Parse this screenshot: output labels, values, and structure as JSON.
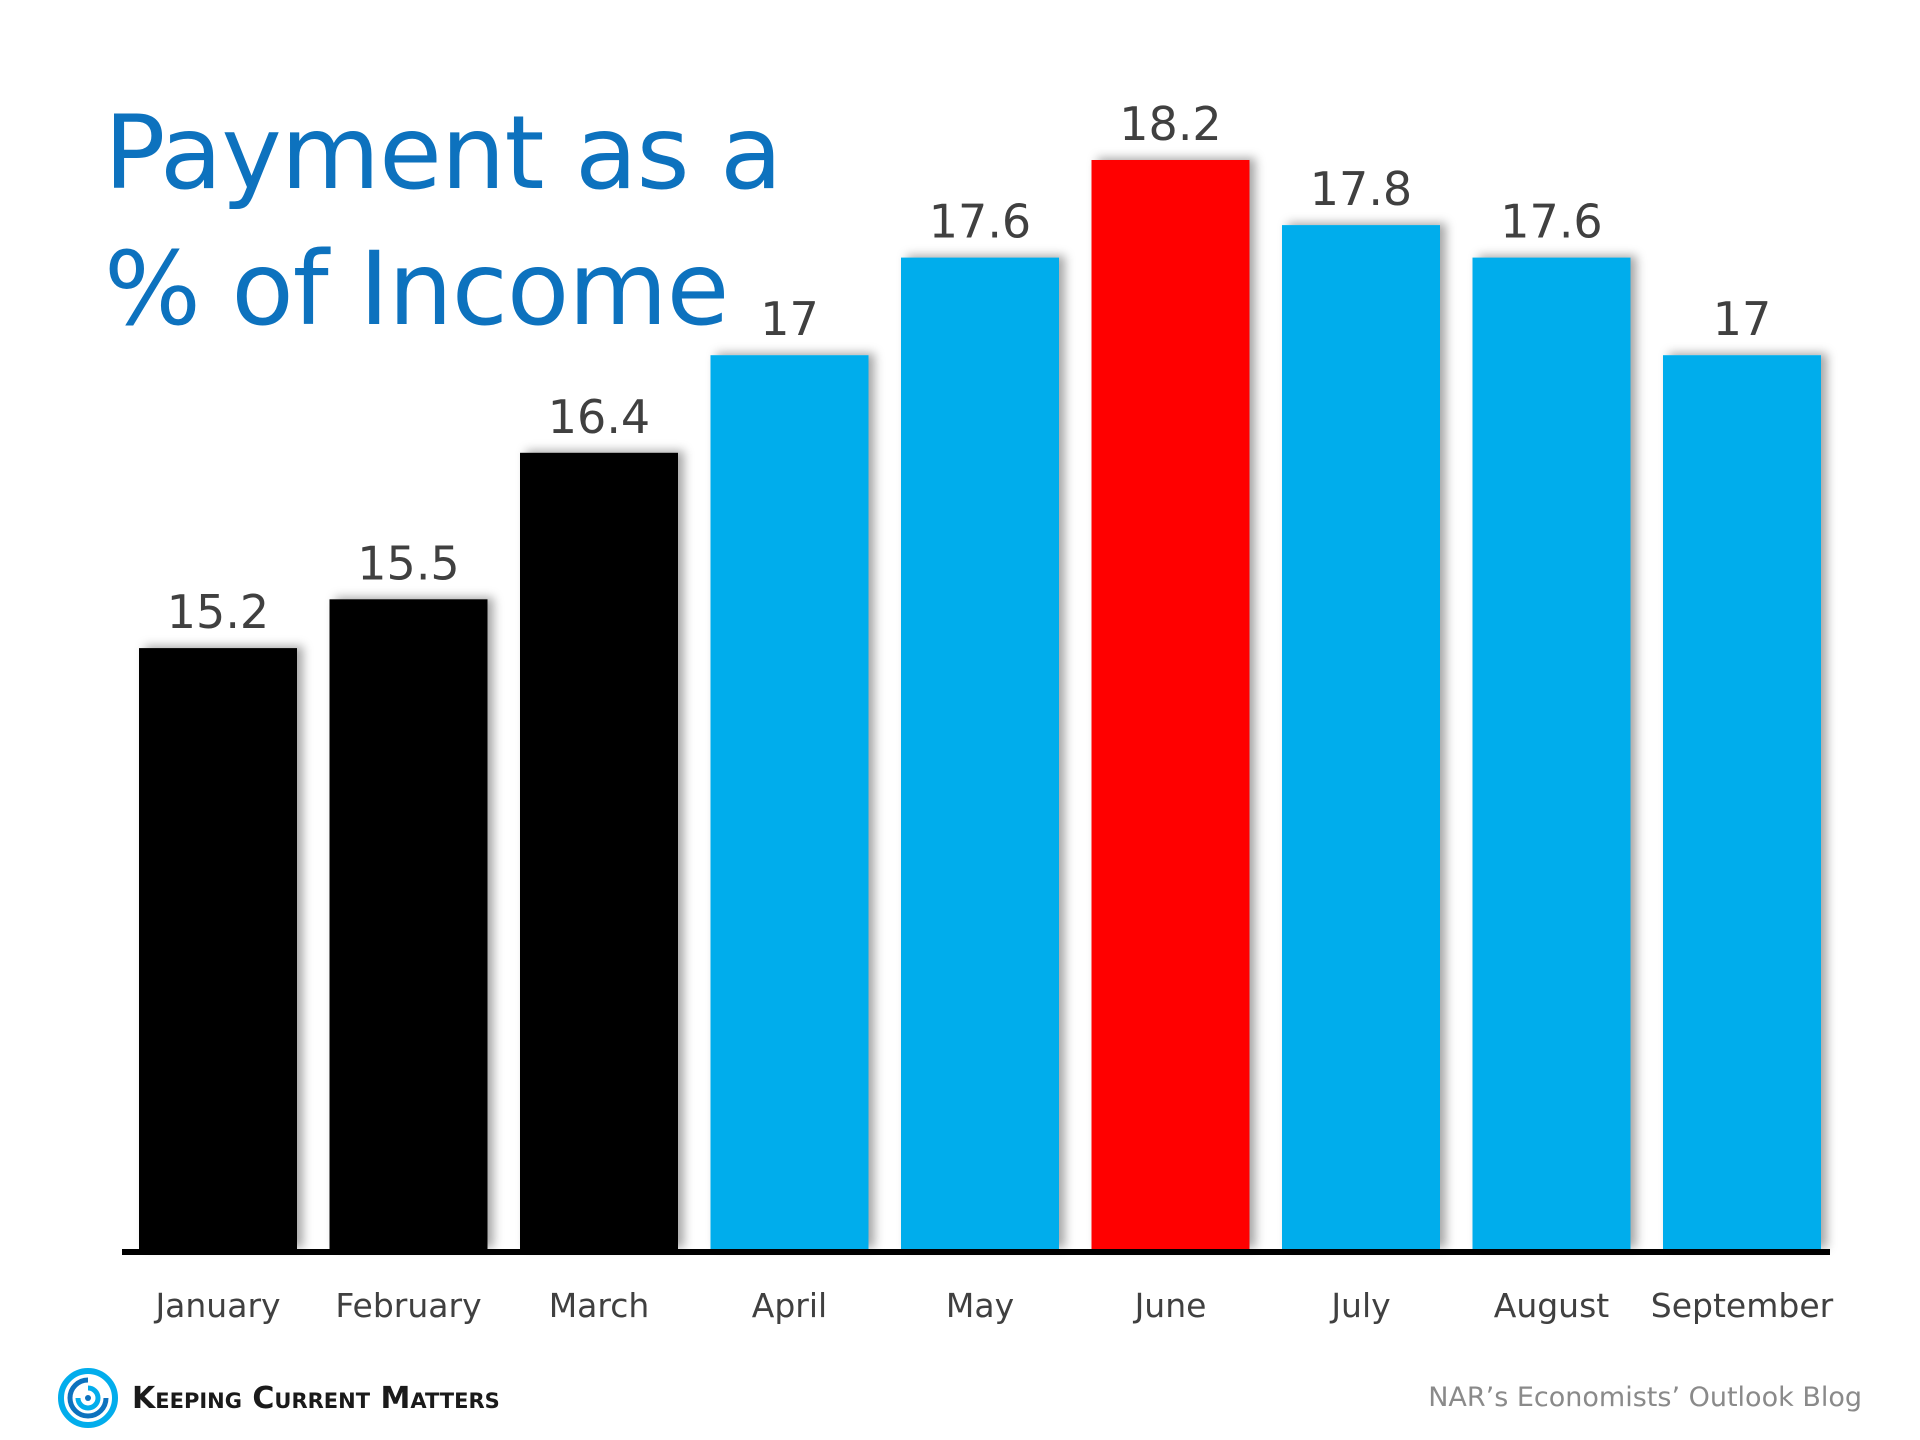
{
  "title_lines": [
    "Payment as a",
    "% of Income"
  ],
  "footer": {
    "brand": "Keeping Current Matters",
    "source": "NAR’s Economists’ Outlook Blog"
  },
  "colors": {
    "title": "#0d72be",
    "bar_black": "#000000",
    "bar_blue": "#02adec",
    "bar_red": "#ff0000",
    "label": "#404040",
    "source": "#8a8a8a"
  },
  "icons": [
    "keeping-current-matters-logo-icon"
  ],
  "chart_data": {
    "type": "bar",
    "title": "Payment as a % of Income",
    "categories": [
      "January",
      "February",
      "March",
      "April",
      "May",
      "June",
      "July",
      "August",
      "September"
    ],
    "values": [
      15.2,
      15.5,
      16.4,
      17,
      17.6,
      18.2,
      17.8,
      17.6,
      17
    ],
    "value_labels": [
      "15.2",
      "15.5",
      "16.4",
      "17",
      "17.6",
      "18.2",
      "17.8",
      "17.6",
      "17"
    ],
    "bar_colors": [
      "#000000",
      "#000000",
      "#000000",
      "#02adec",
      "#02adec",
      "#ff0000",
      "#02adec",
      "#02adec",
      "#02adec"
    ],
    "ylim": [
      11.5,
      18.2
    ],
    "grid": false,
    "legend": "none",
    "xlabel": "",
    "ylabel": ""
  }
}
